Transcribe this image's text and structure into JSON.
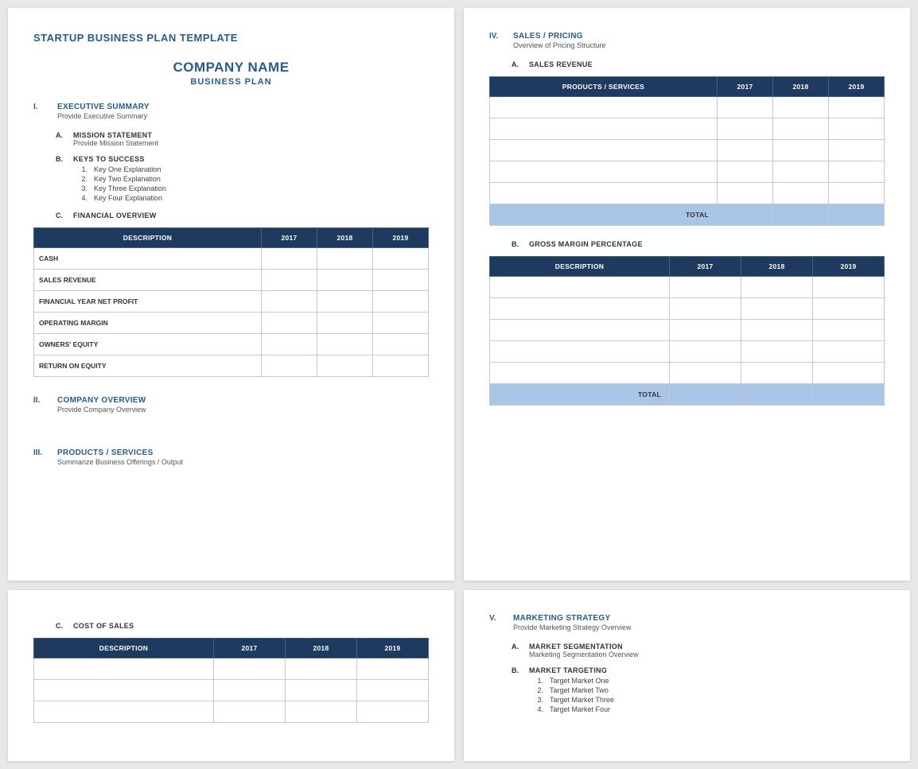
{
  "doc": {
    "template_title": "STARTUP BUSINESS PLAN TEMPLATE",
    "company_name": "COMPANY NAME",
    "company_sub": "BUSINESS PLAN"
  },
  "s1": {
    "roman": "I.",
    "title": "EXECUTIVE SUMMARY",
    "desc": "Provide Executive Summary",
    "a": {
      "letter": "A.",
      "title": "MISSION STATEMENT",
      "desc": "Provide Mission Statement"
    },
    "b": {
      "letter": "B.",
      "title": "KEYS TO SUCCESS",
      "items": [
        {
          "n": "1.",
          "t": "Key One Explanation"
        },
        {
          "n": "2.",
          "t": "Key Two Explanation"
        },
        {
          "n": "3.",
          "t": "Key Three Explanation"
        },
        {
          "n": "4.",
          "t": "Key Four Explanation"
        }
      ]
    },
    "c": {
      "letter": "C.",
      "title": "FINANCIAL OVERVIEW"
    }
  },
  "fin_table": {
    "cols": [
      "DESCRIPTION",
      "2017",
      "2018",
      "2019"
    ],
    "rows": [
      "CASH",
      "SALES REVENUE",
      "FINANCIAL YEAR NET PROFIT",
      "OPERATING MARGIN",
      "OWNERS' EQUITY",
      "RETURN ON EQUITY"
    ]
  },
  "s2": {
    "roman": "II.",
    "title": "COMPANY OVERVIEW",
    "desc": "Provide Company Overview"
  },
  "s3": {
    "roman": "III.",
    "title": "PRODUCTS / SERVICES",
    "desc": "Summarize Business Offerings / Output"
  },
  "s4": {
    "roman": "IV.",
    "title": "SALES / PRICING",
    "desc": "Overview of Pricing Structure",
    "a": {
      "letter": "A.",
      "title": "SALES REVENUE"
    },
    "b": {
      "letter": "B.",
      "title": "GROSS MARGIN PERCENTAGE"
    }
  },
  "sales_table": {
    "cols": [
      "PRODUCTS / SERVICES",
      "2017",
      "2018",
      "2019"
    ],
    "blank_rows": 5,
    "total_label": "TOTAL"
  },
  "margin_table": {
    "cols": [
      "DESCRIPTION",
      "2017",
      "2018",
      "2019"
    ],
    "blank_rows": 5,
    "total_label": "TOTAL"
  },
  "p3": {
    "c": {
      "letter": "C.",
      "title": "COST OF SALES"
    },
    "cost_table": {
      "cols": [
        "DESCRIPTION",
        "2017",
        "2018",
        "2019"
      ],
      "blank_rows": 3
    }
  },
  "s5": {
    "roman": "V.",
    "title": "MARKETING STRATEGY",
    "desc": "Provide Marketing Strategy Overview",
    "a": {
      "letter": "A.",
      "title": "MARKET SEGMENTATION",
      "desc": "Marketing Segmentation Overview"
    },
    "b": {
      "letter": "B.",
      "title": "MARKET TARGETING",
      "items": [
        {
          "n": "1.",
          "t": "Target Market One"
        },
        {
          "n": "2.",
          "t": "Target Market Two"
        },
        {
          "n": "3.",
          "t": "Target Market Three"
        },
        {
          "n": "4.",
          "t": "Target Market Four"
        }
      ]
    }
  },
  "colors": {
    "header_bg": "#1f3a5f",
    "heading_color": "#2a5a8a",
    "total_bg": "#a9c5e8",
    "border": "#c9c9c9",
    "page_bg": "#ffffff",
    "canvas_bg": "#e8e8e8"
  }
}
